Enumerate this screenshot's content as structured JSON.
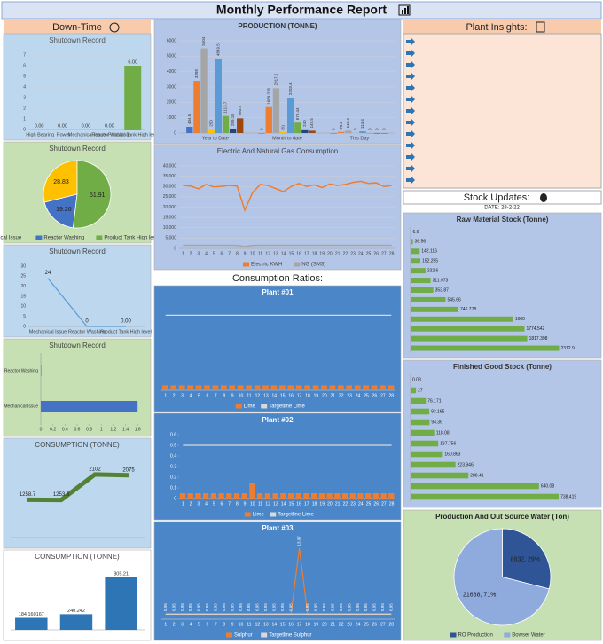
{
  "header": {
    "title": "Monthly Performance Report"
  },
  "sections": {
    "downtime": "Down-Time",
    "consumption_ratios": "Consumption Ratios:",
    "plant_insights": "Plant Insights:",
    "stock_updates": "Stock Updates:",
    "stock_date": "DATE: 28-2-22"
  },
  "chart_data": [
    {
      "type": "bar",
      "title": "Shutdown Record",
      "categories": [
        "High Bearing",
        "Power",
        "Mechanical Issue",
        "Reactor Washing",
        "Product Tank High level"
      ],
      "ylim": [
        0,
        7
      ],
      "yticks": [
        0,
        1,
        2,
        3,
        4,
        5,
        6,
        7
      ],
      "grid": true,
      "series": [
        {
          "colors": [
            "#5b9bd5",
            "#5b9bd5",
            "#5b9bd5",
            "#5b9bd5",
            "#70ad47"
          ],
          "values": [
            0,
            0,
            0,
            0,
            6
          ],
          "value_labels": [
            "0.00",
            "0.00",
            "0.00",
            "0.00",
            "6.00"
          ]
        }
      ]
    },
    {
      "type": "pie",
      "title": "Shutdown Record",
      "categories": [
        "Mechanical Issue",
        "Reactor Washing",
        "Product Tank High level"
      ],
      "values": [
        28.83,
        19.26,
        51.91
      ],
      "colors": [
        "#ffc000",
        "#4472c4",
        "#70ad47"
      ],
      "legend": true
    },
    {
      "type": "line",
      "title": "Shutdown Record",
      "categories": [
        "Mechanical Issue",
        "Reactor Washing",
        "Product Tank High level"
      ],
      "ylim": [
        0,
        30
      ],
      "yticks": [
        0,
        5,
        10,
        15,
        20,
        25,
        30
      ],
      "series": [
        {
          "color": "#5b9bd5",
          "values": [
            24,
            0,
            0
          ],
          "value_labels": [
            "24",
            "0",
            "0.00"
          ]
        }
      ]
    },
    {
      "type": "barh",
      "title": "Shutdown Record",
      "categories": [
        "Reactor Washing",
        "Mechanical Issue"
      ],
      "xlim": [
        0,
        1.7
      ],
      "xticks": [
        0,
        0.2,
        0.4,
        0.6,
        0.8,
        1,
        1.2,
        1.4,
        1.6
      ],
      "series": [
        {
          "color": "#4472c4",
          "values": [
            0,
            1.6
          ]
        }
      ]
    },
    {
      "type": "line",
      "title": "CONSUMPTION (TONNE)",
      "categories": [
        null,
        null,
        null,
        null
      ],
      "ylim": [
        0,
        2600
      ],
      "series": [
        {
          "color": "#548235",
          "values": [
            1258.7,
            1253.6,
            2102,
            2075
          ]
        }
      ]
    },
    {
      "type": "bar",
      "title": "CONSUMPTION (TONNE)",
      "categories": [
        null,
        null,
        null
      ],
      "ylim": [
        0,
        900
      ],
      "series": [
        {
          "color": "#2e75b6",
          "values": [
            184.160167,
            240.242,
            805.21
          ]
        }
      ]
    },
    {
      "type": "bar",
      "title": "PRODUCTION (TONNE)",
      "categories": [
        "Year to Date",
        "Month to date",
        "This Day"
      ],
      "ylim": [
        0,
        6000
      ],
      "yticks": [
        0,
        1000,
        2000,
        3000,
        4000,
        5000,
        6000
      ],
      "grid": true,
      "series": [
        {
          "color": "#4472c4",
          "values": [
            404.5,
            0,
            0
          ]
        },
        {
          "color": "#ed7d31",
          "values": [
            3398,
            1689.316,
            73.2
          ]
        },
        {
          "color": "#a5a5a5",
          "values": [
            5504,
            2917.5,
            148.4
          ]
        },
        {
          "color": "#ffc000",
          "values": [
            250,
            81,
            0
          ]
        },
        {
          "color": "#5b9bd5",
          "values": [
            4849.5,
            2303.4,
            114.4
          ]
        },
        {
          "color": "#70ad47",
          "values": [
            1113.7,
            679.44,
            0
          ]
        },
        {
          "color": "#264478",
          "values": [
            289.18,
            240,
            0
          ]
        },
        {
          "color": "#9e480e",
          "values": [
            960.5,
            149.5,
            0
          ]
        }
      ]
    },
    {
      "type": "line",
      "title": "Electric And Natural Gas Consumption",
      "categories": [
        1,
        2,
        3,
        4,
        5,
        6,
        7,
        8,
        9,
        10,
        11,
        12,
        13,
        14,
        15,
        16,
        17,
        18,
        19,
        20,
        21,
        22,
        23,
        24,
        25,
        26,
        27,
        28
      ],
      "ylim": [
        0,
        40000
      ],
      "yticks": [
        0,
        {
          "value": 5000,
          "label": "5,000"
        },
        {
          "value": 10000,
          "label": "10,000"
        },
        {
          "value": 15000,
          "label": "15,000"
        },
        {
          "value": 20000,
          "label": "20,000"
        },
        {
          "value": 25000,
          "label": "25,000"
        },
        {
          "value": 30000,
          "label": "30,000"
        },
        {
          "value": 35000,
          "label": "35,000"
        },
        {
          "value": 40000,
          "label": "40,000"
        }
      ],
      "grid": true,
      "legend": true,
      "series": [
        {
          "name": "Electric KWH",
          "color": "#ed7d31",
          "values": [
            30500,
            30200,
            28900,
            31000,
            29800,
            30100,
            30500,
            30200,
            18500,
            27000,
            31000,
            30500,
            29000,
            27500,
            30000,
            31500,
            30000,
            30800,
            29500,
            31200,
            30500,
            31000,
            32000,
            32500,
            31500,
            31800,
            30000,
            30500
          ]
        },
        {
          "name": "NG (SM3)",
          "color": "#a5a5a5",
          "values": [
            1520,
            1480,
            1510,
            1500,
            1490,
            1530,
            1500,
            1470,
            900,
            1450,
            1520,
            1500,
            1490,
            1510,
            1500,
            1530,
            1480,
            1500,
            1510,
            1490,
            1500,
            1520,
            1510,
            1500,
            1490,
            1500,
            1510,
            1500
          ]
        }
      ]
    },
    {
      "type": "bar",
      "title": "Plant #01",
      "categories": [
        1,
        2,
        3,
        4,
        5,
        6,
        7,
        8,
        9,
        10,
        11,
        12,
        13,
        14,
        15,
        16,
        17,
        18,
        19,
        20,
        21,
        22,
        23,
        24,
        25,
        26,
        27,
        28
      ],
      "ylim": [
        0,
        1
      ],
      "legend": true,
      "series": [
        {
          "name": "Lime",
          "color": "#ed7d31",
          "values": [
            0.06,
            0.06,
            0.06,
            0.06,
            0.06,
            0.06,
            0.06,
            0.06,
            0.06,
            0.06,
            0.06,
            0.06,
            0.06,
            0.06,
            0.06,
            0.06,
            0.06,
            0.06,
            0.06,
            0.06,
            0.06,
            0.06,
            0.06,
            0.06,
            0.06,
            0.06,
            0.06,
            0.06
          ]
        },
        {
          "name": "Targetline Lime",
          "type": "line",
          "color": "#d9d9d9",
          "values": [
            0.9,
            0.9,
            0.9,
            0.9,
            0.9,
            0.9,
            0.9,
            0.9,
            0.9,
            0.9,
            0.9,
            0.9,
            0.9,
            0.9,
            0.9,
            0.9,
            0.9,
            0.9,
            0.9,
            0.9,
            0.9,
            0.9,
            0.9,
            0.9,
            0.9,
            0.9,
            0.9,
            0.9
          ]
        }
      ]
    },
    {
      "type": "bar",
      "title": "Plant #02",
      "categories": [
        1,
        2,
        3,
        4,
        5,
        6,
        7,
        8,
        9,
        10,
        11,
        12,
        13,
        14,
        15,
        16,
        17,
        18,
        19,
        20,
        21,
        22,
        23,
        24,
        25,
        26,
        27,
        28
      ],
      "ylim": [
        0,
        0.6
      ],
      "yticks": [
        0,
        0.1,
        0.2,
        0.3,
        0.4,
        0.5,
        0.6
      ],
      "legend": true,
      "series": [
        {
          "name": "Lime",
          "color": "#ed7d31",
          "values": [
            0.05,
            0.05,
            0.05,
            0.05,
            0.05,
            0.05,
            0.05,
            0.05,
            0.05,
            0.15,
            0.05,
            0.05,
            0.05,
            0.05,
            0.05,
            0.05,
            0.05,
            0.05,
            0.05,
            0.05,
            0.05,
            0.05,
            0.05,
            0.05,
            0.05,
            0.05,
            0.05,
            0.05
          ]
        },
        {
          "name": "Targetline Lime",
          "type": "line",
          "color": "#d9d9d9",
          "values": [
            0.5,
            0.5,
            0.5,
            0.5,
            0.5,
            0.5,
            0.5,
            0.5,
            0.5,
            0.5,
            0.5,
            0.5,
            0.5,
            0.5,
            0.5,
            0.5,
            0.5,
            0.5,
            0.5,
            0.5,
            0.5,
            0.5,
            0.5,
            0.5,
            0.5,
            0.5,
            0.5,
            0.5
          ]
        }
      ]
    },
    {
      "type": "line",
      "title": "Plant #03",
      "categories": [
        1,
        2,
        3,
        4,
        5,
        6,
        7,
        8,
        9,
        10,
        11,
        12,
        13,
        14,
        15,
        16,
        17,
        18,
        19,
        20,
        21,
        22,
        23,
        24,
        25,
        26,
        27,
        28
      ],
      "ylim": [
        0,
        15
      ],
      "legend": true,
      "series": [
        {
          "name": "Sulphur",
          "color": "#ed7d31",
          "labels": true,
          "values": [
            0.95,
            0.95,
            0.95,
            0.95,
            0.95,
            0.95,
            0.95,
            0.95,
            0.95,
            0.95,
            0.95,
            0.95,
            0.95,
            0.95,
            0.95,
            0.95,
            13.97,
            0.95,
            0.95,
            0.95,
            0.95,
            0.95,
            0.95,
            0.95,
            0.95,
            0.95,
            0.95,
            0.95
          ]
        },
        {
          "name": "Targetline Sulphur",
          "color": "#d9d9d9",
          "values": [
            1,
            1,
            1,
            1,
            1,
            1,
            1,
            1,
            1,
            1,
            1,
            1,
            1,
            1,
            1,
            1,
            1,
            1,
            1,
            1,
            1,
            1,
            1,
            1,
            1,
            1,
            1,
            1
          ]
        }
      ]
    },
    {
      "type": "barh",
      "title": "Raw Material Stock (Tonne)",
      "xlim": [
        0,
        2500
      ],
      "series": [
        {
          "color": "#70ad47",
          "values": [
            6.6,
            36.56,
            142.116,
            152.255,
            232.6,
            311.973,
            353.87,
            545.66,
            746.778,
            1600,
            1774.542,
            1817.398,
            2312.9
          ]
        }
      ]
    },
    {
      "type": "barh",
      "title": "Finished Good Stock (Tonne)",
      "xlim": [
        0,
        800
      ],
      "series": [
        {
          "color": "#70ad47",
          "values": [
            0.08,
            27,
            76.171,
            93.165,
            94.36,
            118.08,
            137.756,
            160.863,
            223.946,
            288.41,
            640.08,
            738.419
          ]
        }
      ]
    },
    {
      "type": "pie",
      "title": "Production And Out Source Water (Ton)",
      "categories": [
        "RO Production",
        "Bowser Water"
      ],
      "values": [
        8832,
        21668
      ],
      "value_labels": [
        "8832, 29%",
        "21668, 71%"
      ],
      "colors": [
        "#2f5597",
        "#8faadc"
      ],
      "legend": true
    }
  ]
}
